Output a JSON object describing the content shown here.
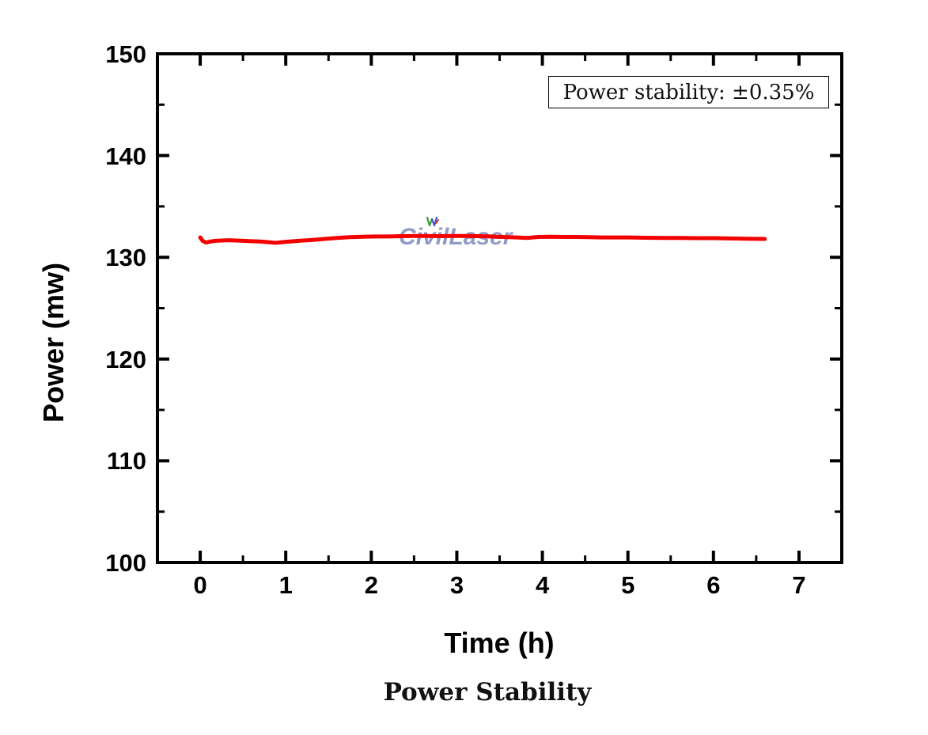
{
  "watermark": {
    "text": "CivilLaser"
  },
  "legend": {
    "text": "Power stability: ±0.35%"
  },
  "caption": "Power Stability",
  "colors": {
    "axis": "#000000",
    "line": "#f30000",
    "watermark": "#8691c1",
    "background": "#ffffff",
    "logo_green": "#3a9b35",
    "logo_blue": "#4157c8",
    "logo_red": "#d03030"
  },
  "chart_data": {
    "type": "line",
    "title": "Power Stability",
    "xlabel": "Time (h)",
    "ylabel": "Power (mw)",
    "xlim": [
      -0.5,
      7.5
    ],
    "ylim": [
      100,
      150
    ],
    "x_major_ticks": [
      0,
      1,
      2,
      3,
      4,
      5,
      6,
      7
    ],
    "x_minor_step": 0.5,
    "y_major_ticks": [
      100,
      110,
      120,
      130,
      140,
      150
    ],
    "y_minor_step": 5,
    "grid": false,
    "legend_position": "top-right",
    "annotation": "Power stability: ±0.35%",
    "series": [
      {
        "name": "Power stability: ±0.35%",
        "x": [
          0.0,
          0.03,
          0.07,
          0.12,
          0.18,
          0.25,
          0.33,
          0.42,
          0.5,
          0.6,
          0.7,
          0.8,
          0.88,
          0.95,
          1.05,
          1.15,
          1.3,
          1.45,
          1.6,
          1.75,
          1.9,
          2.05,
          2.2,
          2.35,
          2.5,
          2.65,
          2.8,
          2.95,
          3.1,
          3.25,
          3.4,
          3.55,
          3.7,
          3.82,
          3.95,
          4.1,
          4.25,
          4.4,
          4.55,
          4.7,
          4.85,
          5.0,
          5.2,
          5.4,
          5.6,
          5.8,
          6.0,
          6.2,
          6.4,
          6.6
        ],
        "y": [
          131.95,
          131.6,
          131.45,
          131.55,
          131.62,
          131.65,
          131.68,
          131.65,
          131.62,
          131.58,
          131.55,
          131.48,
          131.42,
          131.48,
          131.55,
          131.62,
          131.7,
          131.8,
          131.9,
          131.98,
          132.02,
          132.05,
          132.05,
          132.08,
          132.1,
          132.1,
          132.08,
          132.1,
          132.1,
          132.08,
          132.05,
          132.0,
          131.95,
          131.9,
          132.0,
          132.02,
          132.0,
          132.0,
          131.98,
          131.95,
          131.95,
          131.95,
          131.92,
          131.9,
          131.9,
          131.88,
          131.88,
          131.85,
          131.82,
          131.8
        ]
      }
    ]
  }
}
